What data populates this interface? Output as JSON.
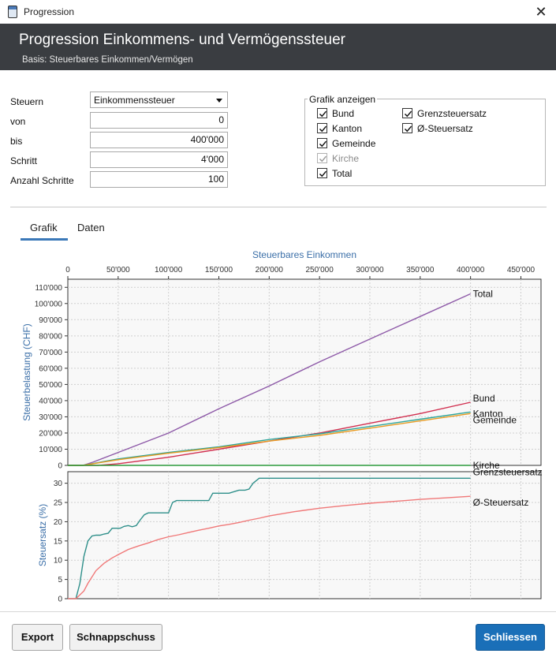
{
  "window": {
    "title": "Progression",
    "close_glyph": "✕"
  },
  "header": {
    "title": "Progression Einkommens- und Vermögenssteuer",
    "subtitle": "Basis: Steuerbares Einkommen/Vermögen"
  },
  "form": {
    "steuern": {
      "label": "Steuern",
      "value": "Einkommenssteuer"
    },
    "von": {
      "label": "von",
      "value": "0"
    },
    "bis": {
      "label": "bis",
      "value": "400'000"
    },
    "schritt": {
      "label": "Schritt",
      "value": "4'000"
    },
    "anzahl": {
      "label": "Anzahl Schritte",
      "value": "100"
    }
  },
  "grafik_anzeigen": {
    "title": "Grafik anzeigen",
    "items": [
      {
        "label": "Bund",
        "checked": true,
        "enabled": true
      },
      {
        "label": "Kanton",
        "checked": true,
        "enabled": true
      },
      {
        "label": "Gemeinde",
        "checked": true,
        "enabled": true
      },
      {
        "label": "Kirche",
        "checked": true,
        "enabled": false
      },
      {
        "label": "Total",
        "checked": true,
        "enabled": true
      },
      {
        "label": "Grenzsteuersatz",
        "checked": true,
        "enabled": true
      },
      {
        "label": "Ø-Steuersatz",
        "checked": true,
        "enabled": true
      }
    ]
  },
  "tabs": {
    "grafik": "Grafik",
    "daten": "Daten",
    "active": "Grafik"
  },
  "buttons": {
    "export": "Export",
    "schnappschuss": "Schnappschuss",
    "schliessen": "Schliessen"
  },
  "colors": {
    "header_bg": "#3a3d41",
    "accent": "#3b78b8",
    "primary_button": "#1a6fb8"
  },
  "chart_data": [
    {
      "type": "line",
      "title": "",
      "xlabel": "Steuerbares Einkommen",
      "ylabel": "Steuerbelastung (CHF)",
      "xlim": [
        0,
        470000
      ],
      "ylim": [
        0,
        115000
      ],
      "xticks": [
        0,
        50000,
        100000,
        150000,
        200000,
        250000,
        300000,
        350000,
        400000,
        450000
      ],
      "xtick_labels": [
        "0",
        "50'000",
        "100'000",
        "150'000",
        "200'000",
        "250'000",
        "300'000",
        "350'000",
        "400'000",
        "450'000"
      ],
      "yticks": [
        0,
        10000,
        20000,
        30000,
        40000,
        50000,
        60000,
        70000,
        80000,
        90000,
        100000,
        110000
      ],
      "ytick_labels": [
        "0",
        "10'000",
        "20'000",
        "30'000",
        "40'000",
        "50'000",
        "60'000",
        "70'000",
        "80'000",
        "90'000",
        "100'000",
        "110'000"
      ],
      "grid": true,
      "series": [
        {
          "name": "Total",
          "color": "#8e5aa8",
          "x": [
            0,
            15000,
            25000,
            50000,
            100000,
            150000,
            200000,
            250000,
            300000,
            350000,
            400000
          ],
          "y": [
            0,
            0,
            2000,
            8000,
            20000,
            35000,
            49000,
            64000,
            78000,
            92000,
            106000
          ]
        },
        {
          "name": "Bund",
          "color": "#d12f4f",
          "x": [
            0,
            30000,
            50000,
            100000,
            150000,
            200000,
            250000,
            300000,
            350000,
            400000
          ],
          "y": [
            0,
            0,
            1000,
            5000,
            10000,
            15000,
            20000,
            26000,
            32000,
            39000
          ]
        },
        {
          "name": "Kanton",
          "color": "#2ea59b",
          "x": [
            0,
            15000,
            50000,
            100000,
            150000,
            200000,
            250000,
            300000,
            350000,
            400000
          ],
          "y": [
            0,
            0,
            4000,
            8000,
            11500,
            16000,
            19500,
            24000,
            28500,
            33000
          ]
        },
        {
          "name": "Gemeinde",
          "color": "#e89a20",
          "x": [
            0,
            15000,
            50000,
            100000,
            150000,
            200000,
            250000,
            300000,
            350000,
            400000
          ],
          "y": [
            0,
            0,
            3500,
            7500,
            11000,
            15000,
            18500,
            23000,
            27500,
            32000
          ]
        },
        {
          "name": "Kirche",
          "color": "#2c9a3c",
          "x": [
            0,
            400000
          ],
          "y": [
            0,
            0
          ]
        }
      ]
    },
    {
      "type": "line",
      "title": "",
      "xlabel": "",
      "ylabel": "Steuersatz (%)",
      "xlim": [
        0,
        470000
      ],
      "ylim": [
        0,
        33
      ],
      "yticks": [
        0,
        5,
        10,
        15,
        20,
        25,
        30
      ],
      "ytick_labels": [
        "0",
        "5",
        "10",
        "15",
        "20",
        "25",
        "30"
      ],
      "grid": true,
      "series": [
        {
          "name": "Grenzsteuersatz",
          "color": "#2e8f8a",
          "x": [
            0,
            8000,
            12000,
            16000,
            20000,
            24000,
            28000,
            32000,
            36000,
            40000,
            44000,
            48000,
            52000,
            56000,
            60000,
            64000,
            68000,
            72000,
            76000,
            80000,
            84000,
            88000,
            92000,
            100000,
            104000,
            108000,
            112000,
            120000,
            130000,
            140000,
            144000,
            148000,
            152000,
            160000,
            170000,
            172000,
            176000,
            180000,
            184000,
            190000,
            200000,
            250000,
            300000,
            350000,
            400000
          ],
          "y": [
            0,
            0,
            4,
            11,
            15,
            16.3,
            16.5,
            16.5,
            16.8,
            17,
            18.3,
            18.3,
            18.3,
            18.8,
            19,
            18.7,
            19,
            20.5,
            21.8,
            22.3,
            22.3,
            22.3,
            22.3,
            22.3,
            25,
            25.5,
            25.5,
            25.5,
            25.5,
            25.5,
            27.4,
            27.4,
            27.4,
            27.4,
            28.2,
            28.2,
            28.2,
            28.5,
            30,
            31.3,
            31.3,
            31.3,
            31.3,
            31.3,
            31.3
          ]
        },
        {
          "name": "Ø-Steuersatz",
          "color": "#f07878",
          "x": [
            0,
            8000,
            12000,
            16000,
            20000,
            28000,
            36000,
            44000,
            52000,
            60000,
            70000,
            80000,
            90000,
            100000,
            110000,
            120000,
            130000,
            140000,
            150000,
            160000,
            170000,
            180000,
            190000,
            200000,
            225000,
            250000,
            275000,
            300000,
            325000,
            350000,
            375000,
            400000
          ],
          "y": [
            0,
            0,
            1,
            2,
            4,
            7.3,
            9.2,
            10.6,
            11.7,
            12.8,
            13.7,
            14.5,
            15.4,
            16.1,
            16.6,
            17.2,
            17.8,
            18.3,
            18.9,
            19.3,
            19.8,
            20.4,
            20.9,
            21.5,
            22.6,
            23.5,
            24.2,
            24.8,
            25.3,
            25.8,
            26.2,
            26.6
          ]
        }
      ]
    }
  ]
}
